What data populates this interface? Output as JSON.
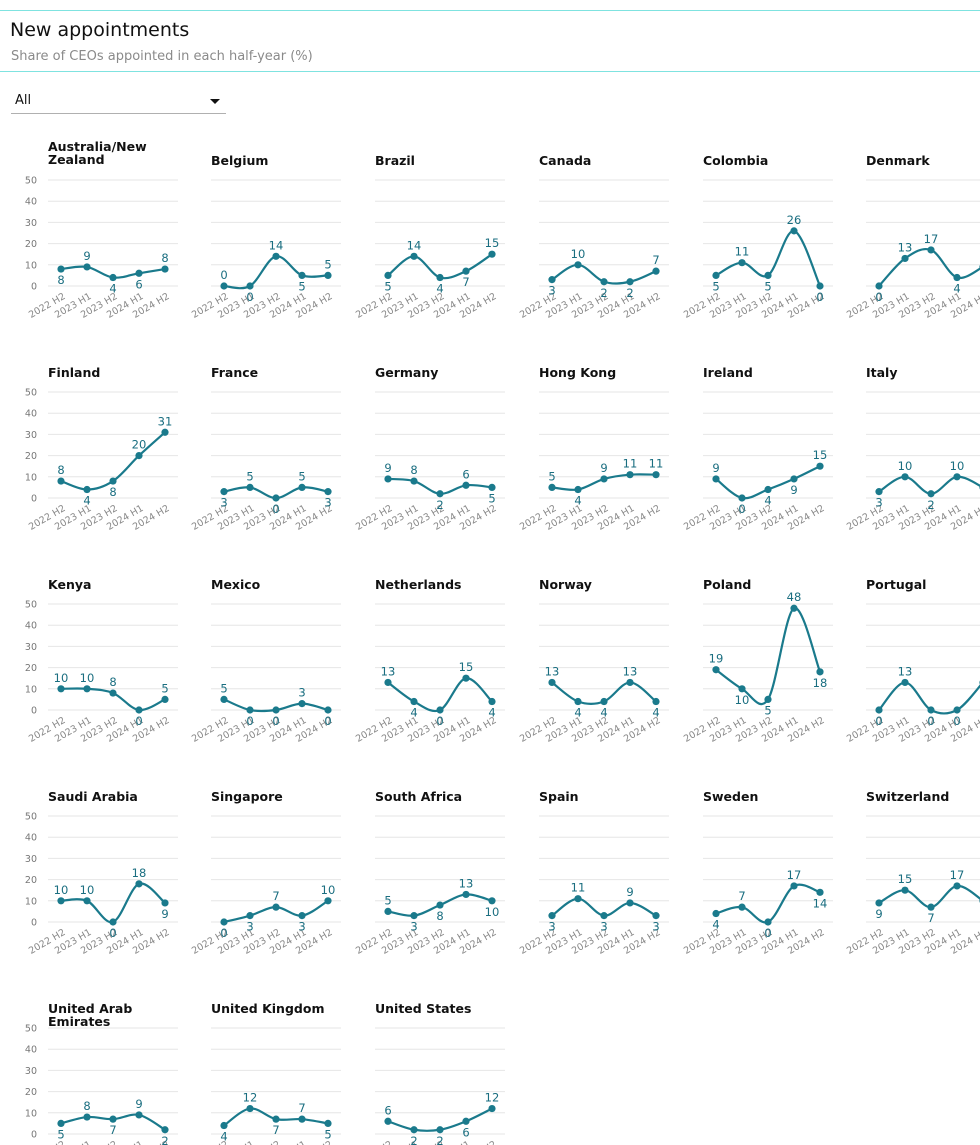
{
  "header": {
    "title": "New appointments",
    "subtitle": "Share of CEOs appointed in each half-year (%)"
  },
  "filter": {
    "selected": "All"
  },
  "colors": {
    "series": "#1a7a8c",
    "label": "#1a6e80",
    "rule": "#7fe3e0"
  },
  "chart_data": {
    "type": "line",
    "small_multiples": true,
    "categories": [
      "2022 H2",
      "2023 H1",
      "2023 H2",
      "2024 H1",
      "2024 H2"
    ],
    "ylim": [
      0,
      50
    ],
    "yticks": [
      0,
      10,
      20,
      30,
      40,
      50
    ],
    "grid": true,
    "panels": [
      {
        "name": "Australia/New Zealand",
        "values": [
          8,
          9,
          4,
          6,
          8
        ],
        "labels": [
          "8",
          "9",
          "4",
          "6",
          "8"
        ]
      },
      {
        "name": "Belgium",
        "values": [
          0,
          0,
          14,
          5,
          5
        ],
        "labels": [
          "0",
          "0",
          "14",
          "5",
          "5"
        ]
      },
      {
        "name": "Brazil",
        "values": [
          5,
          14,
          4,
          7,
          15
        ],
        "labels": [
          "5",
          "14",
          "4",
          "7",
          "15"
        ]
      },
      {
        "name": "Canada",
        "values": [
          3,
          10,
          2,
          2,
          7
        ],
        "labels": [
          "3",
          "10",
          "2",
          "2",
          "7"
        ]
      },
      {
        "name": "Colombia",
        "values": [
          5,
          11,
          5,
          26,
          0
        ],
        "labels": [
          "5",
          "11",
          "5",
          "26",
          "0"
        ]
      },
      {
        "name": "Denmark",
        "values": [
          0,
          13,
          17,
          4,
          9
        ],
        "labels": [
          "0",
          "13",
          "17",
          "4",
          ""
        ]
      },
      {
        "name": "Finland",
        "values": [
          8,
          4,
          8,
          20,
          31
        ],
        "labels": [
          "8",
          "4",
          "8",
          "20",
          "31"
        ]
      },
      {
        "name": "France",
        "values": [
          3,
          5,
          0,
          5,
          3
        ],
        "labels": [
          "3",
          "5",
          "0",
          "5",
          "3"
        ]
      },
      {
        "name": "Germany",
        "values": [
          9,
          8,
          2,
          6,
          5
        ],
        "labels": [
          "9",
          "8",
          "2",
          "6",
          "5"
        ]
      },
      {
        "name": "Hong Kong",
        "values": [
          5,
          4,
          9,
          11,
          11
        ],
        "labels": [
          "5",
          "4",
          "9",
          "11",
          "11"
        ]
      },
      {
        "name": "Ireland",
        "values": [
          9,
          0,
          4,
          9,
          15
        ],
        "labels": [
          "9",
          "0",
          "4",
          "9",
          "15"
        ]
      },
      {
        "name": "Italy",
        "values": [
          3,
          10,
          2,
          10,
          5
        ],
        "labels": [
          "3",
          "10",
          "2",
          "10",
          ""
        ]
      },
      {
        "name": "Kenya",
        "values": [
          10,
          10,
          8,
          0,
          5
        ],
        "labels": [
          "10",
          "10",
          "8",
          "0",
          "5"
        ]
      },
      {
        "name": "Mexico",
        "values": [
          5,
          0,
          0,
          3,
          0
        ],
        "labels": [
          "5",
          "0",
          "0",
          "3",
          "0"
        ]
      },
      {
        "name": "Netherlands",
        "values": [
          13,
          4,
          0,
          15,
          4
        ],
        "labels": [
          "13",
          "4",
          "0",
          "15",
          "4"
        ]
      },
      {
        "name": "Norway",
        "values": [
          13,
          4,
          4,
          13,
          4
        ],
        "labels": [
          "13",
          "4",
          "4",
          "13",
          "4"
        ]
      },
      {
        "name": "Poland",
        "values": [
          19,
          10,
          5,
          48,
          18
        ],
        "labels": [
          "19",
          "10",
          "5",
          "48",
          "18"
        ]
      },
      {
        "name": "Portugal",
        "values": [
          0,
          13,
          0,
          0,
          13
        ],
        "labels": [
          "0",
          "13",
          "0",
          "0",
          ""
        ]
      },
      {
        "name": "Saudi Arabia",
        "values": [
          10,
          10,
          0,
          18,
          9
        ],
        "labels": [
          "10",
          "10",
          "0",
          "18",
          "9"
        ]
      },
      {
        "name": "Singapore",
        "values": [
          0,
          3,
          7,
          3,
          10
        ],
        "labels": [
          "0",
          "3",
          "7",
          "3",
          "10"
        ]
      },
      {
        "name": "South Africa",
        "values": [
          5,
          3,
          8,
          13,
          10
        ],
        "labels": [
          "5",
          "3",
          "8",
          "13",
          "10"
        ]
      },
      {
        "name": "Spain",
        "values": [
          3,
          11,
          3,
          9,
          3
        ],
        "labels": [
          "3",
          "11",
          "3",
          "9",
          "3"
        ]
      },
      {
        "name": "Sweden",
        "values": [
          4,
          7,
          0,
          17,
          14
        ],
        "labels": [
          "4",
          "7",
          "0",
          "17",
          "14"
        ]
      },
      {
        "name": "Switzerland",
        "values": [
          9,
          15,
          7,
          17,
          10
        ],
        "labels": [
          "9",
          "15",
          "7",
          "17",
          ""
        ]
      },
      {
        "name": "United Arab Emirates",
        "values": [
          5,
          8,
          7,
          9,
          2
        ],
        "labels": [
          "5",
          "8",
          "7",
          "9",
          "2"
        ]
      },
      {
        "name": "United Kingdom",
        "values": [
          4,
          12,
          7,
          7,
          5
        ],
        "labels": [
          "4",
          "12",
          "7",
          "7",
          "5"
        ]
      },
      {
        "name": "United States",
        "values": [
          6,
          2,
          2,
          6,
          12
        ],
        "labels": [
          "6",
          "2",
          "2",
          "6",
          "12"
        ]
      }
    ]
  }
}
